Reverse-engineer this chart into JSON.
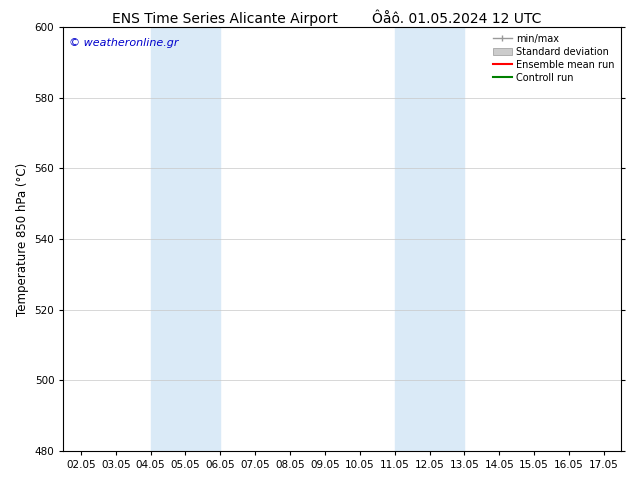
{
  "title_left": "ENS Time Series Alicante Airport",
  "title_right": "Ôåô. 01.05.2024 12 UTC",
  "ylabel": "Temperature 850 hPa (°C)",
  "ylim": [
    480,
    600
  ],
  "yticks": [
    480,
    500,
    520,
    540,
    560,
    580,
    600
  ],
  "x_tick_labels": [
    "02.05",
    "03.05",
    "04.05",
    "05.05",
    "06.05",
    "07.05",
    "08.05",
    "09.05",
    "10.05",
    "11.05",
    "12.05",
    "13.05",
    "14.05",
    "15.05",
    "16.05",
    "17.05"
  ],
  "x_tick_positions": [
    0,
    1,
    2,
    3,
    4,
    5,
    6,
    7,
    8,
    9,
    10,
    11,
    12,
    13,
    14,
    15
  ],
  "xlim": [
    -0.5,
    15.5
  ],
  "shaded_bands": [
    {
      "x_start": 2.0,
      "x_end": 4.0
    },
    {
      "x_start": 9.0,
      "x_end": 11.0
    }
  ],
  "shade_color": "#daeaf7",
  "background_color": "#ffffff",
  "watermark_text": "© weatheronline.gr",
  "watermark_color": "#0000cc",
  "legend_labels": [
    "min/max",
    "Standard deviation",
    "Ensemble mean run",
    "Controll run"
  ],
  "legend_colors": [
    "#999999",
    "#cccccc",
    "#ff0000",
    "#008000"
  ],
  "grid_color": "#c8c8c8",
  "title_fontsize": 10,
  "tick_fontsize": 7.5,
  "ylabel_fontsize": 8.5,
  "watermark_fontsize": 8,
  "legend_fontsize": 7
}
